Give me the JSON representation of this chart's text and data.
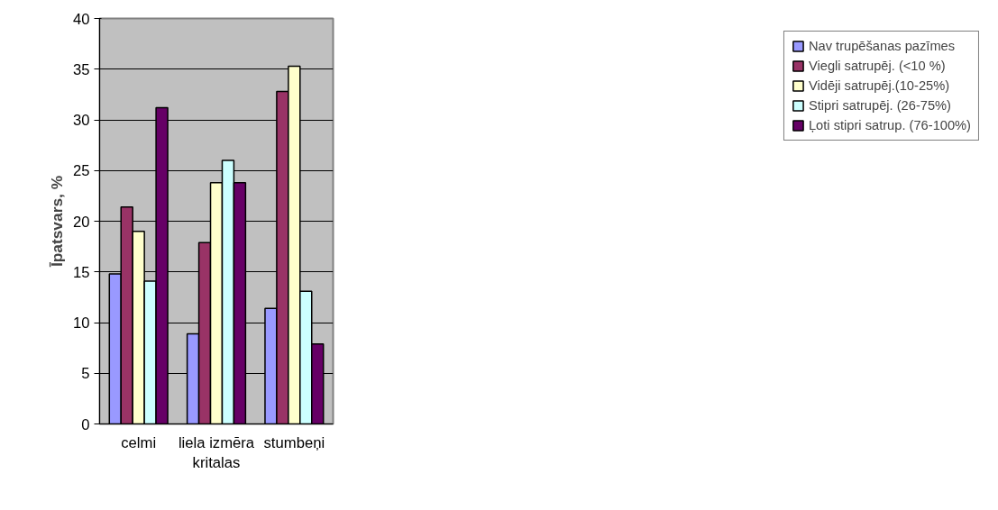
{
  "chart_data": {
    "type": "bar",
    "ylabel": "Īpatsvars, %",
    "categories": [
      "celmi",
      "liela izmēra kritalas",
      "stumbeņi"
    ],
    "series": [
      {
        "name": "Nav trupēšanas pazīmes",
        "color": "#9999ff",
        "values": [
          14.8,
          8.9,
          11.4
        ]
      },
      {
        "name": "Viegli satrupēj. (<10 %)",
        "color": "#993366",
        "values": [
          21.4,
          17.9,
          32.8
        ]
      },
      {
        "name": "Vidēji satrupēj.(10-25%)",
        "color": "#ffffcc",
        "values": [
          19.0,
          23.8,
          35.3
        ]
      },
      {
        "name": "Stipri satrupēj. (26-75%)",
        "color": "#ccffff",
        "values": [
          14.1,
          26.0,
          13.1
        ]
      },
      {
        "name": "Ļoti stipri satrup. (76-100%)",
        "color": "#660066",
        "values": [
          31.2,
          23.8,
          7.9
        ]
      }
    ],
    "ylim": [
      0,
      40
    ],
    "yticks": [
      0,
      5,
      10,
      15,
      20,
      25,
      30,
      35,
      40
    ],
    "grid": "y",
    "legend": "right"
  }
}
